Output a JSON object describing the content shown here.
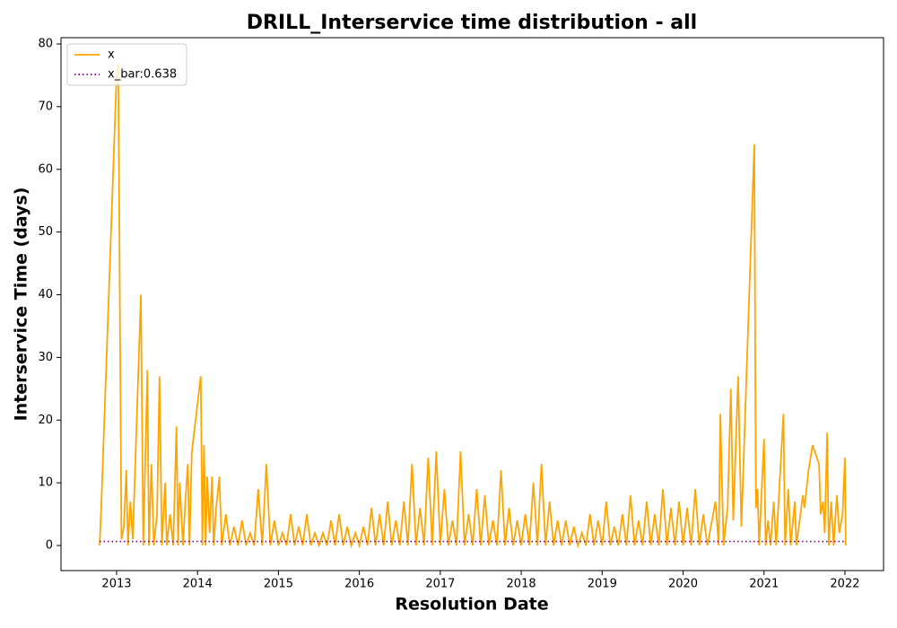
{
  "chart_data": {
    "type": "line",
    "title": "DRILL_Interservice time distribution - all",
    "xlabel": "Resolution Date",
    "ylabel": "Interservice Time (days)",
    "xlim": [
      2012.313,
      2022.477
    ],
    "xticks": [
      2013,
      2014,
      2015,
      2016,
      2017,
      2018,
      2019,
      2020,
      2021,
      2022
    ],
    "ylim": [
      -4,
      81
    ],
    "yticks": [
      0,
      10,
      20,
      30,
      40,
      50,
      60,
      70,
      80
    ],
    "legend": "upper left",
    "series": [
      {
        "name": "x",
        "color": "#ffa500",
        "style": "solid",
        "x": [
          2012.79,
          2012.81,
          2013.0,
          2013.02,
          2013.06,
          2013.09,
          2013.12,
          2013.14,
          2013.17,
          2013.2,
          2013.3,
          2013.33,
          2013.38,
          2013.4,
          2013.43,
          2013.46,
          2013.5,
          2013.53,
          2013.56,
          2013.6,
          2013.62,
          2013.66,
          2013.7,
          2013.74,
          2013.76,
          2013.78,
          2013.82,
          2013.85,
          2013.88,
          2013.9,
          2013.93,
          2014.04,
          2014.06,
          2014.08,
          2014.1,
          2014.12,
          2014.15,
          2014.18,
          2014.2,
          2014.23,
          2014.27,
          2014.3,
          2014.35,
          2014.4,
          2014.45,
          2014.5,
          2014.55,
          2014.6,
          2014.65,
          2014.7,
          2014.75,
          2014.8,
          2014.85,
          2014.9,
          2014.95,
          2015.0,
          2015.05,
          2015.1,
          2015.15,
          2015.2,
          2015.25,
          2015.3,
          2015.35,
          2015.4,
          2015.45,
          2015.5,
          2015.55,
          2015.6,
          2015.65,
          2015.7,
          2015.75,
          2015.8,
          2015.85,
          2015.9,
          2015.95,
          2016.0,
          2016.05,
          2016.1,
          2016.15,
          2016.2,
          2016.25,
          2016.3,
          2016.35,
          2016.4,
          2016.45,
          2016.5,
          2016.55,
          2016.6,
          2016.65,
          2016.7,
          2016.75,
          2016.8,
          2016.85,
          2016.9,
          2016.95,
          2017.0,
          2017.05,
          2017.1,
          2017.15,
          2017.2,
          2017.25,
          2017.3,
          2017.35,
          2017.4,
          2017.45,
          2017.5,
          2017.55,
          2017.6,
          2017.65,
          2017.7,
          2017.75,
          2017.8,
          2017.85,
          2017.9,
          2017.95,
          2018.0,
          2018.05,
          2018.1,
          2018.15,
          2018.2,
          2018.25,
          2018.3,
          2018.35,
          2018.4,
          2018.45,
          2018.5,
          2018.55,
          2018.6,
          2018.65,
          2018.7,
          2018.75,
          2018.8,
          2018.85,
          2018.9,
          2018.95,
          2019.0,
          2019.05,
          2019.1,
          2019.15,
          2019.2,
          2019.25,
          2019.3,
          2019.35,
          2019.4,
          2019.45,
          2019.5,
          2019.55,
          2019.6,
          2019.65,
          2019.7,
          2019.75,
          2019.8,
          2019.85,
          2019.9,
          2019.95,
          2020.0,
          2020.05,
          2020.1,
          2020.15,
          2020.2,
          2020.25,
          2020.3,
          2020.4,
          2020.44,
          2020.46,
          2020.5,
          2020.55,
          2020.59,
          2020.62,
          2020.68,
          2020.72,
          2020.88,
          2020.9,
          2020.92,
          2020.94,
          2021.0,
          2021.02,
          2021.05,
          2021.08,
          2021.12,
          2021.15,
          2021.24,
          2021.26,
          2021.3,
          2021.33,
          2021.38,
          2021.4,
          2021.48,
          2021.5,
          2021.55,
          2021.6,
          2021.68,
          2021.7,
          2021.73,
          2021.75,
          2021.78,
          2021.8,
          2021.83,
          2021.86,
          2021.9,
          2021.93,
          2021.97,
          2022.0,
          2022.01
        ],
        "values": [
          0,
          6,
          75,
          77,
          1,
          3,
          12,
          0,
          7,
          1,
          40,
          0,
          28,
          0,
          13,
          0,
          5,
          27,
          0,
          10,
          0,
          5,
          0,
          19,
          0,
          10,
          0,
          7,
          13,
          0,
          15,
          27,
          0,
          16,
          0,
          11,
          2,
          11,
          0,
          6,
          11,
          0,
          5,
          0,
          3,
          0,
          4,
          0,
          2,
          0,
          9,
          0,
          13,
          0,
          4,
          0,
          2,
          0,
          5,
          0,
          3,
          0,
          5,
          0,
          2,
          0,
          2,
          0,
          4,
          0,
          5,
          0,
          3,
          0,
          2,
          0,
          3,
          0,
          6,
          0,
          5,
          0,
          7,
          0,
          4,
          0,
          7,
          0,
          13,
          0,
          6,
          0,
          14,
          0,
          15,
          0,
          9,
          0,
          4,
          0,
          15,
          0,
          5,
          0,
          9,
          0,
          8,
          0,
          4,
          0,
          12,
          0,
          6,
          0,
          4,
          0,
          5,
          0,
          10,
          0,
          13,
          0,
          7,
          0,
          4,
          0,
          4,
          0,
          3,
          0,
          2,
          0,
          5,
          0,
          4,
          0,
          7,
          0,
          3,
          0,
          5,
          0,
          8,
          0,
          4,
          0,
          7,
          0,
          5,
          0,
          9,
          0,
          6,
          0,
          7,
          0,
          6,
          0,
          9,
          0,
          5,
          0,
          7,
          0,
          21,
          0,
          6,
          25,
          4,
          27,
          3,
          64,
          6,
          9,
          0,
          17,
          0,
          4,
          0,
          7,
          0,
          21,
          0,
          9,
          0,
          7,
          0,
          8,
          6,
          12,
          16,
          13,
          5,
          7,
          2,
          18,
          0,
          7,
          0,
          8,
          2,
          5,
          14,
          0
        ]
      },
      {
        "name": "x_bar:0.638",
        "color": "#800080",
        "style": "dotted",
        "x": [
          2012.79,
          2022.01
        ],
        "values": [
          0.638,
          0.638
        ]
      }
    ]
  }
}
